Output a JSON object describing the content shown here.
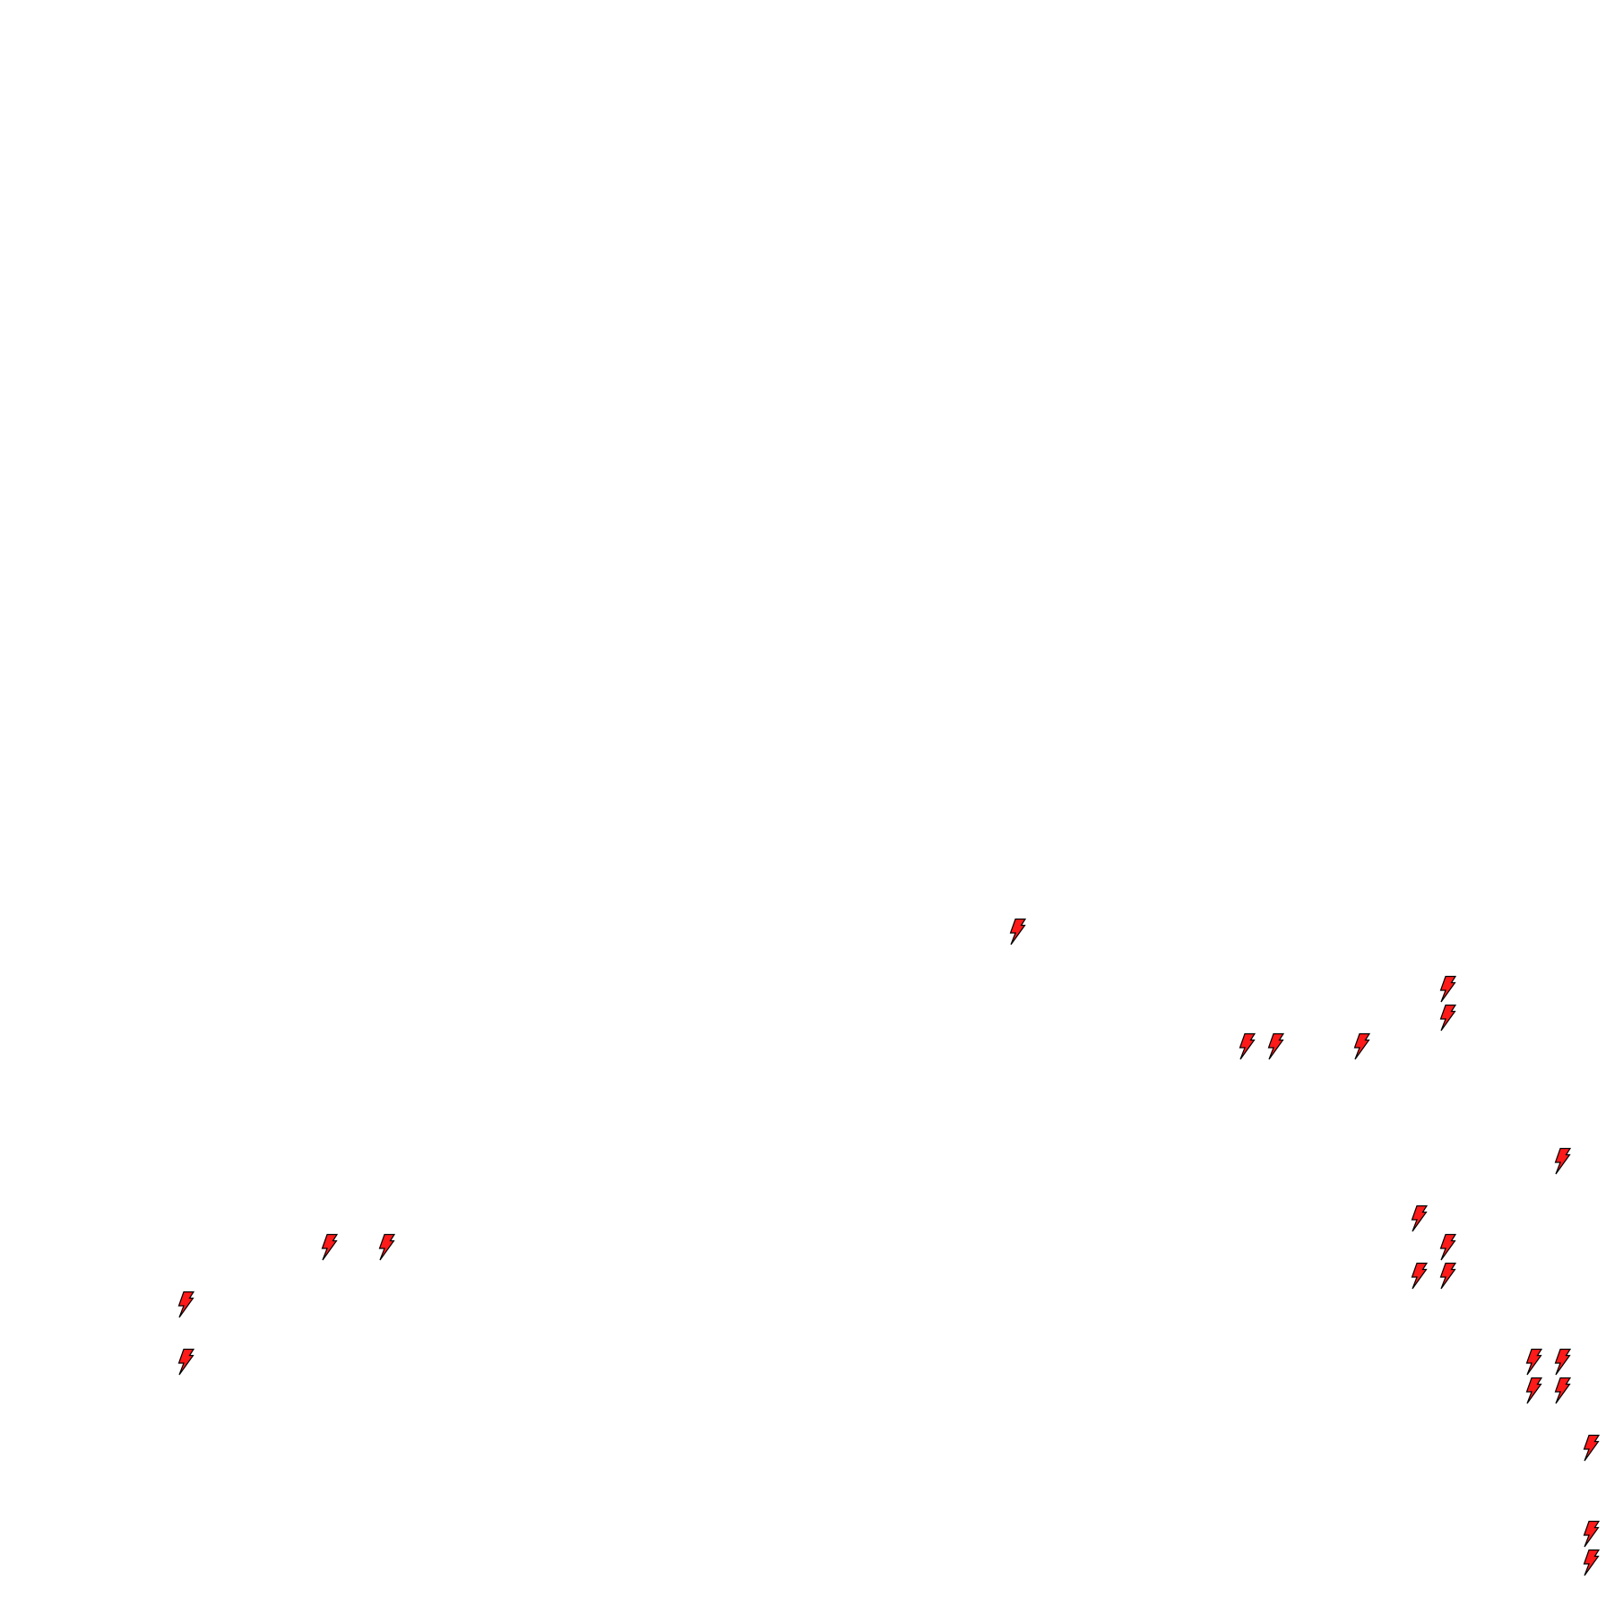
{
  "board": {
    "background_color": "#ffffff",
    "token_icon": "lightning-bolt-icon",
    "token_fill": "#ff1a1a",
    "token_stroke": "#000000"
  }
}
